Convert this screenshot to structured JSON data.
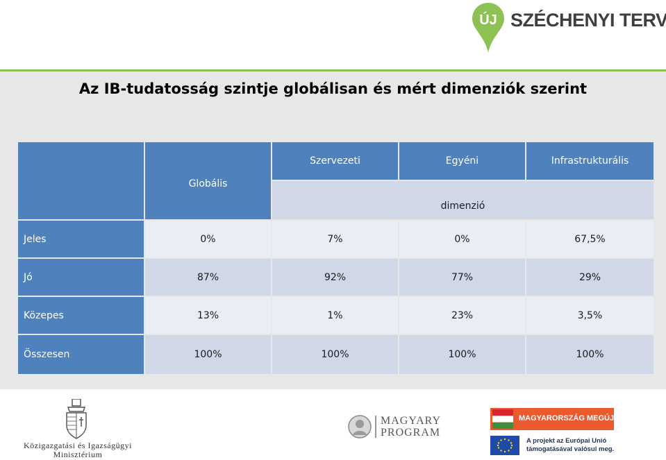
{
  "header": {
    "logo_uj": "ÚJ",
    "logo_text": "SZÉCHENYI TERV"
  },
  "title": "Az IB-tudatosság szintje globálisan és mért dimenziók szerint",
  "table": {
    "global_header": "Globális",
    "dim_headers": [
      "Szervezeti",
      "Egyéni",
      "Infrastrukturális"
    ],
    "dim_group_label": "dimenzió",
    "rows": [
      {
        "label": "Jeles",
        "values": [
          "0%",
          "7%",
          "0%",
          "67,5%"
        ]
      },
      {
        "label": "Jó",
        "values": [
          "87%",
          "92%",
          "77%",
          "29%"
        ]
      },
      {
        "label": "Közepes",
        "values": [
          "13%",
          "1%",
          "23%",
          "3,5%"
        ]
      },
      {
        "label": "Összesen",
        "values": [
          "100%",
          "100%",
          "100%",
          "100%"
        ]
      }
    ]
  },
  "footer": {
    "ministry_line1": "Közigazgatási és Igazságügyi",
    "ministry_line2": "Minisztérium",
    "magyary_line1": "MAGYARY",
    "magyary_line2": "PROGRAM",
    "flag_text": "MAGYARORSZÁG MEGÚJUL",
    "eu_line1": "A projekt az Európai Unió",
    "eu_line2": "támogatásával valósul meg."
  },
  "colors": {
    "header_cell": "#4f81bd",
    "band_dark": "#d0d8e8",
    "band_light": "#e9edf4",
    "accent_green": "#8dc153"
  }
}
